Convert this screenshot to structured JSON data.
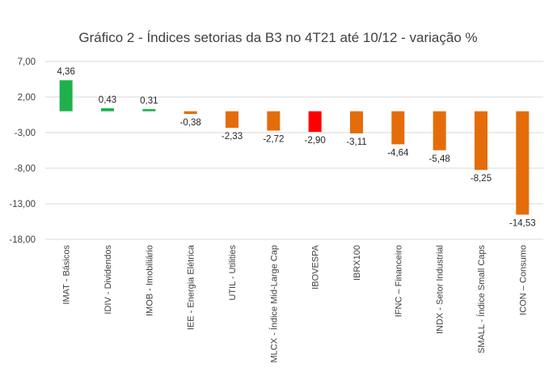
{
  "chart_data": {
    "type": "bar",
    "title": "Gráfico 2 - Índices setorias da B3 no 4T21 até 10/12 - variação %",
    "xlabel": "",
    "ylabel": "",
    "ylim": [
      -18,
      7
    ],
    "yticks": [
      "7,00",
      "2,00",
      "-3,00",
      "-8,00",
      "-13,00",
      "-18,00"
    ],
    "ytick_values": [
      7,
      2,
      -3,
      -8,
      -13,
      -18
    ],
    "grid": true,
    "legend": "none",
    "categories": [
      "IMAT - Básicos",
      "IDIV - Dividendos",
      "IMOB - Imobiliário",
      "IEE - Energia Elétrica",
      "UTIL - Utilities",
      "MLCX - Índice Mid-Large Cap",
      "IBOVESPA",
      "IBRX100",
      "IFNC – Financeiro",
      "INDX - Setor Industrial",
      "SMALL - Índice Small Caps",
      "ICON – Consumo"
    ],
    "values": [
      4.36,
      0.43,
      0.31,
      -0.38,
      -2.33,
      -2.72,
      -2.9,
      -3.11,
      -4.64,
      -5.48,
      -8.25,
      -14.53
    ],
    "value_labels": [
      "4,36",
      "0,43",
      "0,31",
      "-0,38",
      "-2,33",
      "-2,72",
      "-2,90",
      "-3,11",
      "-4,64",
      "-5,48",
      "-8,25",
      "-14,53"
    ],
    "colors": {
      "positive": "#1fb14c",
      "negative": "#e46c0a",
      "highlight": "#ff0000",
      "highlight_category": "IBOVESPA"
    }
  }
}
